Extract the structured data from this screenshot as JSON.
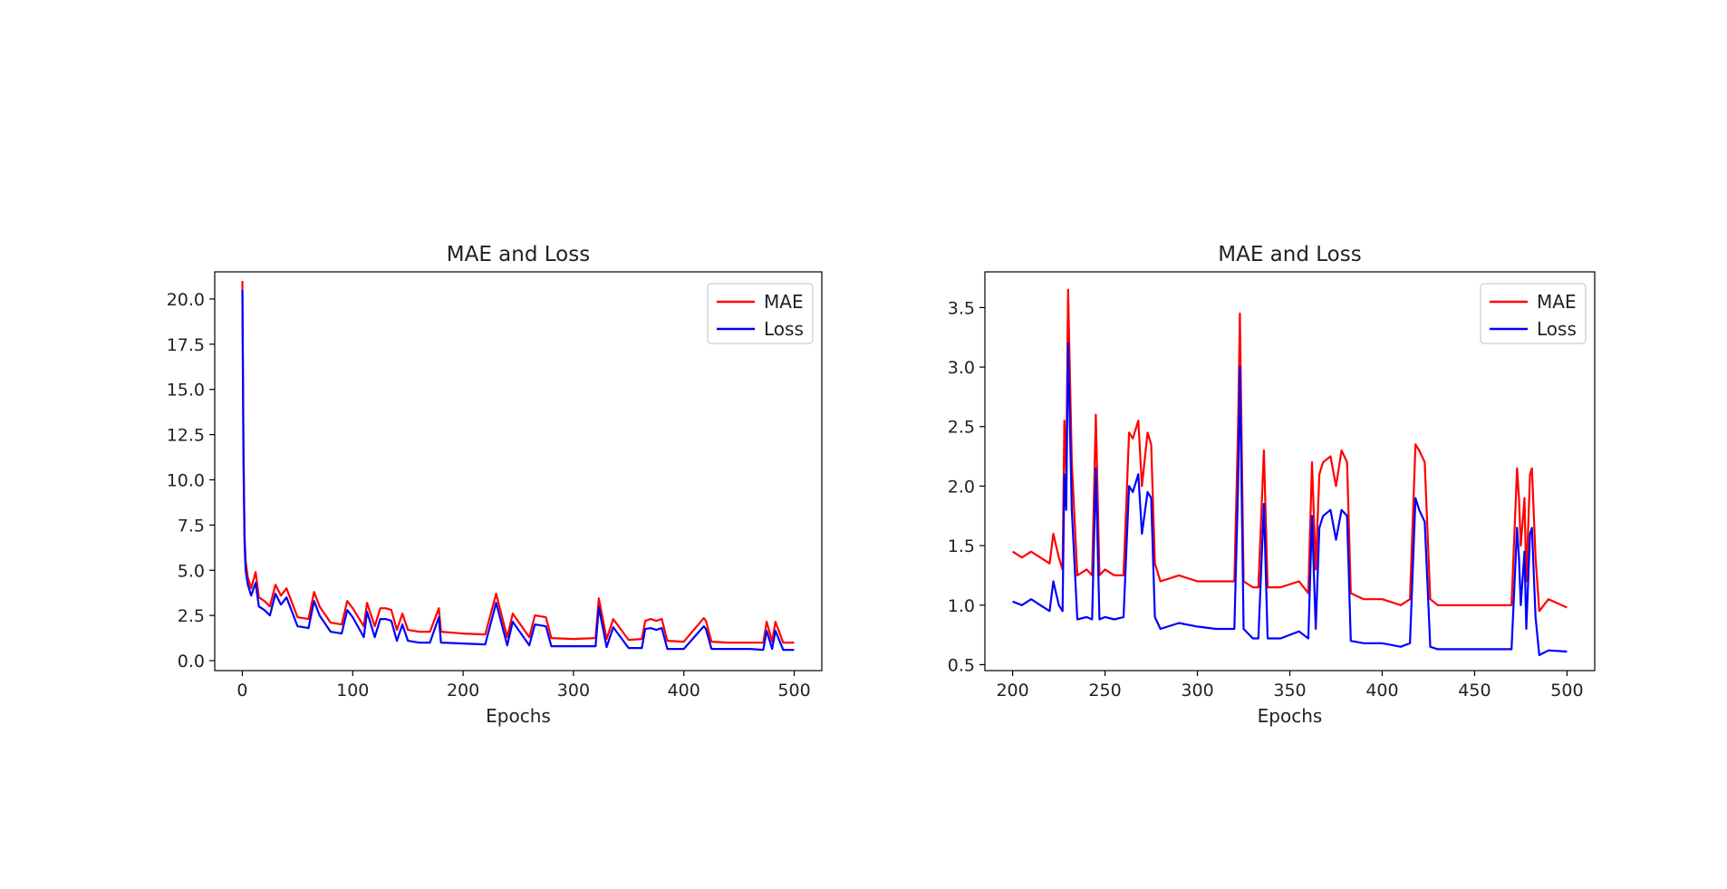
{
  "chart_data": [
    {
      "type": "line",
      "title": "MAE and Loss",
      "xlabel": "Epochs",
      "ylabel": "",
      "xlim": [
        -25,
        525
      ],
      "ylim": [
        -0.55,
        21.5
      ],
      "xticks": [
        0,
        100,
        200,
        300,
        400,
        500
      ],
      "yticks": [
        0.0,
        2.5,
        5.0,
        7.5,
        10.0,
        12.5,
        15.0,
        17.5,
        20.0
      ],
      "xtick_labels": [
        "0",
        "100",
        "200",
        "300",
        "400",
        "500"
      ],
      "ytick_labels": [
        "0.0",
        "2.5",
        "5.0",
        "7.5",
        "10.0",
        "12.5",
        "15.0",
        "17.5",
        "20.0"
      ],
      "grid": false,
      "legend": "top-right",
      "series": [
        {
          "name": "MAE",
          "color": "#ff0000",
          "x": [
            0,
            1,
            2,
            3,
            5,
            8,
            12,
            15,
            20,
            25,
            30,
            35,
            40,
            45,
            50,
            60,
            65,
            70,
            80,
            90,
            95,
            100,
            110,
            113,
            120,
            125,
            130,
            135,
            140,
            145,
            150,
            160,
            170,
            178,
            180,
            200,
            220,
            230,
            240,
            245,
            260,
            265,
            275,
            280,
            300,
            320,
            323,
            330,
            336,
            350,
            362,
            365,
            370,
            375,
            380,
            385,
            400,
            418,
            420,
            425,
            440,
            460,
            472,
            475,
            480,
            483,
            490,
            500
          ],
          "y": [
            21.0,
            12.0,
            7.0,
            5.5,
            4.6,
            4.0,
            4.9,
            3.5,
            3.3,
            3.0,
            4.2,
            3.6,
            4.0,
            3.2,
            2.4,
            2.3,
            3.8,
            3.0,
            2.1,
            2.0,
            3.3,
            2.9,
            1.9,
            3.2,
            1.9,
            2.9,
            2.9,
            2.8,
            1.7,
            2.6,
            1.7,
            1.6,
            1.6,
            2.9,
            1.6,
            1.5,
            1.45,
            3.7,
            1.3,
            2.6,
            1.3,
            2.5,
            2.4,
            1.25,
            1.2,
            1.25,
            3.45,
            1.2,
            2.3,
            1.15,
            1.2,
            2.2,
            2.3,
            2.2,
            2.3,
            1.1,
            1.05,
            2.35,
            2.2,
            1.05,
            1.0,
            1.0,
            1.0,
            2.15,
            1.05,
            2.15,
            1.0,
            1.0
          ]
        },
        {
          "name": "Loss",
          "color": "#0000ff",
          "x": [
            0,
            1,
            2,
            3,
            5,
            8,
            12,
            15,
            20,
            25,
            30,
            35,
            40,
            45,
            50,
            60,
            65,
            70,
            80,
            90,
            95,
            100,
            110,
            113,
            120,
            125,
            130,
            135,
            140,
            145,
            150,
            160,
            170,
            178,
            180,
            200,
            220,
            230,
            240,
            245,
            260,
            265,
            275,
            280,
            300,
            320,
            323,
            330,
            336,
            350,
            362,
            365,
            370,
            375,
            380,
            385,
            400,
            418,
            420,
            425,
            440,
            460,
            472,
            475,
            480,
            483,
            490,
            500
          ],
          "y": [
            20.5,
            11.0,
            6.5,
            5.0,
            4.2,
            3.6,
            4.3,
            3.0,
            2.8,
            2.5,
            3.7,
            3.1,
            3.5,
            2.7,
            1.9,
            1.8,
            3.3,
            2.5,
            1.6,
            1.5,
            2.8,
            2.4,
            1.3,
            2.7,
            1.3,
            2.3,
            2.3,
            2.2,
            1.1,
            2.0,
            1.1,
            1.0,
            1.0,
            2.4,
            1.0,
            0.95,
            0.9,
            3.2,
            0.85,
            2.15,
            0.85,
            2.0,
            1.9,
            0.8,
            0.8,
            0.8,
            2.95,
            0.75,
            1.85,
            0.7,
            0.7,
            1.75,
            1.8,
            1.7,
            1.8,
            0.65,
            0.65,
            1.9,
            1.75,
            0.65,
            0.65,
            0.65,
            0.6,
            1.65,
            0.65,
            1.65,
            0.6,
            0.6
          ]
        }
      ]
    },
    {
      "type": "line",
      "title": "MAE and Loss",
      "xlabel": "Epochs",
      "ylabel": "",
      "xlim": [
        185,
        515
      ],
      "ylim": [
        0.45,
        3.8
      ],
      "xticks": [
        200,
        250,
        300,
        350,
        400,
        450,
        500
      ],
      "yticks": [
        0.5,
        1.0,
        1.5,
        2.0,
        2.5,
        3.0,
        3.5
      ],
      "xtick_labels": [
        "200",
        "250",
        "300",
        "350",
        "400",
        "450",
        "500"
      ],
      "ytick_labels": [
        "0.5",
        "1.0",
        "1.5",
        "2.0",
        "2.5",
        "3.0",
        "3.5"
      ],
      "grid": false,
      "legend": "top-right",
      "series": [
        {
          "name": "MAE",
          "color": "#ff0000",
          "x": [
            200,
            205,
            210,
            215,
            220,
            222,
            225,
            227,
            228,
            229,
            230,
            232,
            235,
            240,
            243,
            245,
            247,
            250,
            255,
            260,
            263,
            265,
            268,
            270,
            273,
            275,
            277,
            280,
            290,
            300,
            310,
            320,
            322,
            323,
            325,
            330,
            333,
            336,
            338,
            345,
            355,
            360,
            362,
            364,
            366,
            368,
            372,
            375,
            378,
            381,
            383,
            390,
            400,
            410,
            415,
            418,
            420,
            423,
            426,
            430,
            440,
            450,
            460,
            470,
            473,
            474,
            475,
            477,
            478,
            480,
            481,
            483,
            485,
            490,
            500
          ],
          "y": [
            1.45,
            1.4,
            1.45,
            1.4,
            1.35,
            1.6,
            1.4,
            1.3,
            2.55,
            2.1,
            3.65,
            2.2,
            1.25,
            1.3,
            1.25,
            2.6,
            1.25,
            1.3,
            1.25,
            1.25,
            2.45,
            2.4,
            2.55,
            2.0,
            2.45,
            2.35,
            1.35,
            1.2,
            1.25,
            1.2,
            1.2,
            1.2,
            2.5,
            3.45,
            1.2,
            1.15,
            1.15,
            2.3,
            1.15,
            1.15,
            1.2,
            1.1,
            2.2,
            1.3,
            2.1,
            2.2,
            2.25,
            2.0,
            2.3,
            2.2,
            1.1,
            1.05,
            1.05,
            1.0,
            1.05,
            2.35,
            2.3,
            2.2,
            1.05,
            1.0,
            1.0,
            1.0,
            1.0,
            1.0,
            2.15,
            1.9,
            1.5,
            1.9,
            1.2,
            2.1,
            2.15,
            1.4,
            0.95,
            1.05,
            0.98
          ]
        },
        {
          "name": "Loss",
          "color": "#0000ff",
          "x": [
            200,
            205,
            210,
            215,
            220,
            222,
            225,
            227,
            228,
            229,
            230,
            232,
            235,
            240,
            243,
            245,
            247,
            250,
            255,
            260,
            263,
            265,
            268,
            270,
            273,
            275,
            277,
            280,
            290,
            300,
            310,
            320,
            322,
            323,
            325,
            330,
            333,
            336,
            338,
            345,
            355,
            360,
            362,
            364,
            366,
            368,
            372,
            375,
            378,
            381,
            383,
            390,
            400,
            410,
            415,
            418,
            420,
            423,
            426,
            430,
            440,
            450,
            460,
            470,
            473,
            474,
            475,
            477,
            478,
            480,
            481,
            483,
            485,
            490,
            500
          ],
          "y": [
            1.03,
            1.0,
            1.05,
            1.0,
            0.95,
            1.2,
            1.0,
            0.95,
            2.1,
            1.8,
            3.2,
            1.8,
            0.88,
            0.9,
            0.88,
            2.15,
            0.88,
            0.9,
            0.88,
            0.9,
            2.0,
            1.95,
            2.1,
            1.6,
            1.95,
            1.9,
            0.9,
            0.8,
            0.85,
            0.82,
            0.8,
            0.8,
            2.0,
            3.0,
            0.8,
            0.72,
            0.72,
            1.85,
            0.72,
            0.72,
            0.78,
            0.72,
            1.75,
            0.8,
            1.65,
            1.75,
            1.8,
            1.55,
            1.8,
            1.75,
            0.7,
            0.68,
            0.68,
            0.65,
            0.68,
            1.9,
            1.8,
            1.7,
            0.65,
            0.63,
            0.63,
            0.63,
            0.63,
            0.63,
            1.65,
            1.4,
            1.0,
            1.45,
            0.8,
            1.6,
            1.65,
            0.9,
            0.58,
            0.62,
            0.61
          ]
        }
      ]
    }
  ]
}
